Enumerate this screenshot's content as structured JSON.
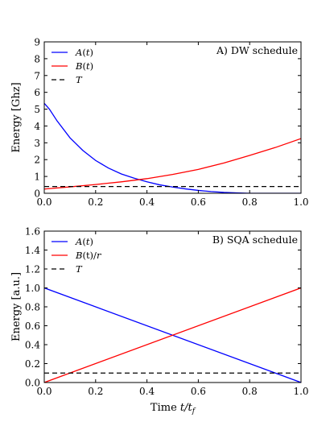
{
  "chart_data": [
    {
      "type": "line",
      "title": "A) DW schedule",
      "xlabel": "",
      "ylabel": "Energy [Ghz]",
      "xlim": [
        0,
        1
      ],
      "ylim": [
        0,
        9
      ],
      "xticks": [
        "0.0",
        "0.2",
        "0.4",
        "0.6",
        "0.8",
        "1.0"
      ],
      "yticks": [
        "0",
        "1",
        "2",
        "3",
        "4",
        "5",
        "6",
        "7",
        "8",
        "9"
      ],
      "grid": false,
      "legend_position": "top-left",
      "series": [
        {
          "name": "A(t)",
          "name_italic": "A",
          "name_rest": "(t)",
          "color": "#0000ff",
          "style": "solid",
          "x": [
            0,
            0.02,
            0.05,
            0.1,
            0.15,
            0.2,
            0.25,
            0.3,
            0.35,
            0.4,
            0.45,
            0.5,
            0.55,
            0.6,
            0.65,
            0.7,
            0.75,
            0.8,
            0.85,
            0.9,
            0.95,
            1.0
          ],
          "y": [
            5.35,
            5.0,
            4.3,
            3.3,
            2.55,
            1.95,
            1.5,
            1.15,
            0.9,
            0.68,
            0.5,
            0.37,
            0.26,
            0.17,
            0.1,
            0.05,
            0.02,
            0.0,
            0.0,
            0.0,
            0.0,
            0.0
          ]
        },
        {
          "name": "B(t)",
          "name_italic": "B",
          "name_rest": "(t)",
          "color": "#ff0000",
          "style": "solid",
          "x": [
            0,
            0.1,
            0.2,
            0.3,
            0.4,
            0.5,
            0.6,
            0.7,
            0.8,
            0.9,
            1.0
          ],
          "y": [
            0.25,
            0.38,
            0.52,
            0.68,
            0.87,
            1.12,
            1.42,
            1.8,
            2.25,
            2.72,
            3.25
          ]
        },
        {
          "name": "T",
          "name_italic": "T",
          "name_rest": "",
          "color": "#000000",
          "style": "dashed",
          "x": [
            0,
            1.0
          ],
          "y": [
            0.4,
            0.4
          ]
        }
      ]
    },
    {
      "type": "line",
      "title": "B) SQA schedule",
      "xlabel": "Time t/t_f",
      "xlabel_plain": "Time ",
      "xlabel_math": "t/t",
      "xlabel_sub": "f",
      "ylabel": "Energy [a.u.]",
      "xlim": [
        0,
        1
      ],
      "ylim": [
        0,
        1.6
      ],
      "xticks": [
        "0.0",
        "0.2",
        "0.4",
        "0.6",
        "0.8",
        "1.0"
      ],
      "yticks": [
        "0.0",
        "0.2",
        "0.4",
        "0.6",
        "0.8",
        "1.0",
        "1.2",
        "1.4",
        "1.6"
      ],
      "grid": false,
      "legend_position": "top-left",
      "series": [
        {
          "name": "A(t)",
          "name_italic": "A",
          "name_rest": "(t)",
          "color": "#0000ff",
          "style": "solid",
          "x": [
            0,
            1.0
          ],
          "y": [
            1.0,
            0.0
          ]
        },
        {
          "name": "B(t)/r",
          "name_italic": "B",
          "name_rest": "(t)/r",
          "color": "#ff0000",
          "style": "solid",
          "x": [
            0,
            1.0
          ],
          "y": [
            0.0,
            1.0
          ]
        },
        {
          "name": "T",
          "name_italic": "T",
          "name_rest": "",
          "color": "#000000",
          "style": "dashed",
          "x": [
            0,
            1.0
          ],
          "y": [
            0.1,
            0.1
          ]
        }
      ]
    }
  ]
}
